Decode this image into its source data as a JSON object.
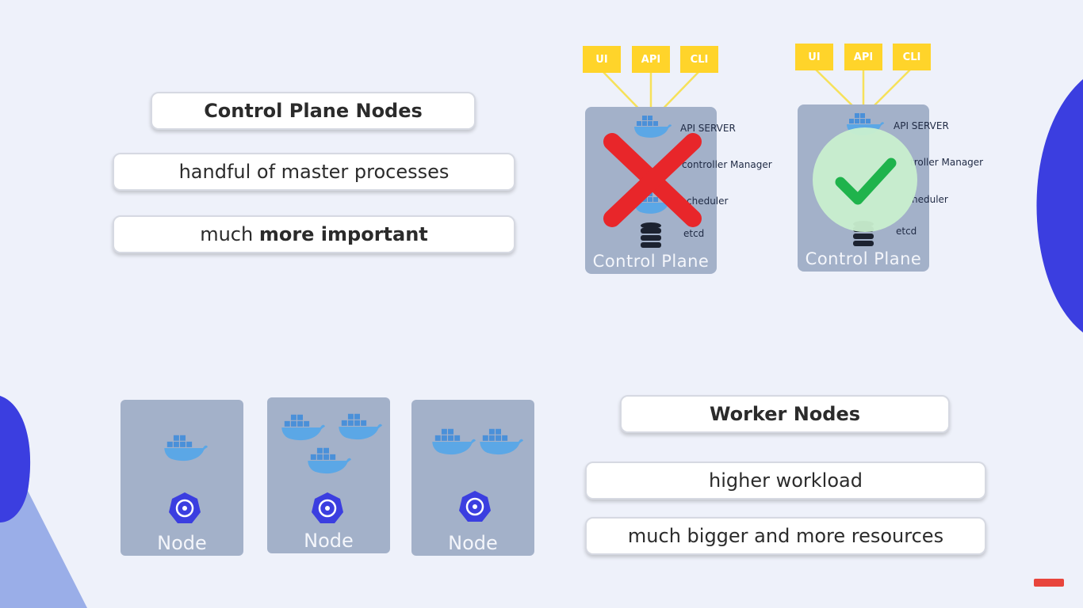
{
  "control_plane": {
    "title": "Control Plane Nodes",
    "point1": "handful of master processes",
    "point2_prefix": "much ",
    "point2_bold": "more important"
  },
  "worker": {
    "title": "Worker Nodes",
    "point1": "higher workload",
    "point2": "much bigger and more resources"
  },
  "diagram_left": {
    "tags": [
      "UI",
      "API",
      "CLI"
    ],
    "processes": [
      "API SERVER",
      "controller Manager",
      "cheduler",
      "etcd"
    ],
    "label": "Control Plane",
    "status": "failed"
  },
  "diagram_right": {
    "tags": [
      "UI",
      "API",
      "CLI"
    ],
    "processes": [
      "API SERVER",
      "troller Manager",
      "heduler",
      "etcd"
    ],
    "label": "Control Plane",
    "status": "ok"
  },
  "nodes": [
    {
      "label": "Node",
      "containers": 1
    },
    {
      "label": "Node",
      "containers": 3
    },
    {
      "label": "Node",
      "containers": 2
    }
  ],
  "colors": {
    "background": "#eef1fa",
    "box": "#a3b1c9",
    "tag": "#ffd42a",
    "cross": "#e8262a",
    "check": "#1fb34c",
    "accent_blue": "#3b3ee0"
  }
}
